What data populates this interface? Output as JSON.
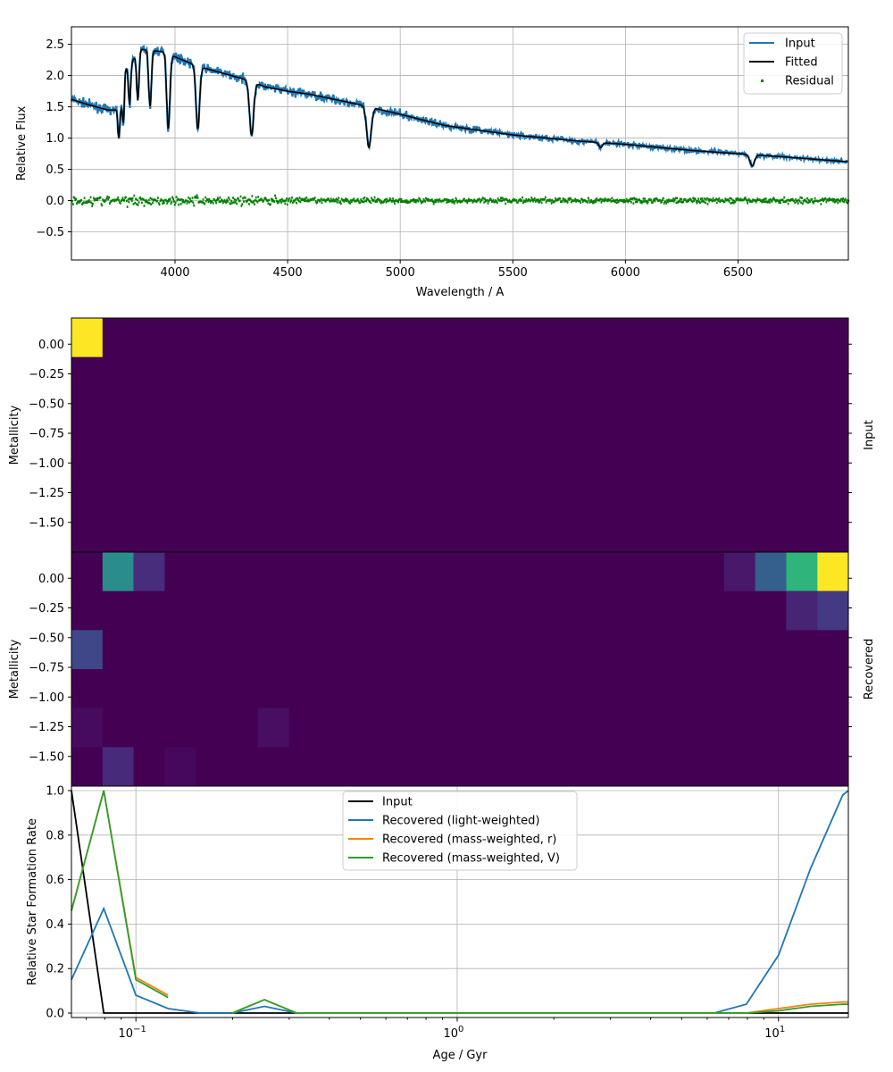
{
  "chart_data": [
    {
      "type": "line",
      "xlabel": "Wavelength / A",
      "ylabel": "Relative Flux",
      "xlim": [
        3540,
        6990
      ],
      "ylim": [
        -0.95,
        2.78
      ],
      "xticks": [
        4000,
        4500,
        5000,
        5500,
        6000,
        6500
      ],
      "yticks": [
        -0.5,
        0.0,
        0.5,
        1.0,
        1.5,
        2.0,
        2.5
      ],
      "grid": true,
      "legend_position": "top-right",
      "colors": {
        "input": "#1f77b4",
        "fitted": "#000000",
        "residual": "#008000"
      },
      "continuum": {
        "x": [
          3540,
          3600,
          3700,
          3760,
          3780,
          3850,
          3950,
          4000,
          4100,
          4200,
          4300,
          4400,
          4500,
          4600,
          4800,
          5000,
          5200,
          5500,
          5800,
          6000,
          6300,
          6500,
          6700,
          6990
        ],
        "y": [
          1.62,
          1.55,
          1.45,
          1.45,
          2.1,
          2.42,
          2.38,
          2.3,
          2.15,
          2.05,
          1.95,
          1.82,
          1.75,
          1.7,
          1.55,
          1.38,
          1.2,
          1.05,
          0.95,
          0.9,
          0.8,
          0.75,
          0.7,
          0.62
        ]
      },
      "absorption_lines": [
        {
          "x": 3750,
          "depth": 0.45,
          "width": 4
        },
        {
          "x": 3771,
          "depth": 0.55,
          "width": 4
        },
        {
          "x": 3798,
          "depth": 0.65,
          "width": 5
        },
        {
          "x": 3835,
          "depth": 0.75,
          "width": 5
        },
        {
          "x": 3889,
          "depth": 0.9,
          "width": 6
        },
        {
          "x": 3970,
          "depth": 1.2,
          "width": 7
        },
        {
          "x": 4101,
          "depth": 1.0,
          "width": 8
        },
        {
          "x": 4340,
          "depth": 0.85,
          "width": 9
        },
        {
          "x": 4861,
          "depth": 0.65,
          "width": 10
        },
        {
          "x": 5890,
          "depth": 0.08,
          "width": 8
        },
        {
          "x": 6563,
          "depth": 0.18,
          "width": 10
        }
      ],
      "legend": [
        {
          "name": "Input",
          "style": "line",
          "color": "#1f77b4"
        },
        {
          "name": "Fitted",
          "style": "line",
          "color": "#000000"
        },
        {
          "name": "Residual",
          "style": "dot",
          "color": "#008000"
        }
      ]
    },
    {
      "type": "heatmap",
      "ylabel": "Metallicity",
      "side_label": "Input",
      "n_cols": 25,
      "yticks": [
        0.0,
        -0.25,
        -0.5,
        -0.75,
        -1.0,
        -1.25,
        -1.5
      ],
      "ylim": [
        -1.75,
        0.22
      ],
      "cell_rows": [
        0.0,
        -0.3,
        -0.6,
        -0.9,
        -1.2,
        -1.5
      ],
      "cells": [
        {
          "col": 0,
          "row": 0,
          "color": "#fde725"
        }
      ]
    },
    {
      "type": "heatmap",
      "ylabel": "Metallicity",
      "side_label": "Recovered",
      "n_cols": 25,
      "yticks": [
        0.0,
        -0.25,
        -0.5,
        -0.75,
        -1.0,
        -1.25,
        -1.5
      ],
      "ylim": [
        -1.75,
        0.22
      ],
      "cell_rows": [
        0.0,
        -0.3,
        -0.6,
        -0.9,
        -1.2,
        -1.5
      ],
      "cells": [
        {
          "col": 1,
          "row": 0,
          "color": "#2a8c8b"
        },
        {
          "col": 2,
          "row": 0,
          "color": "#472d7b"
        },
        {
          "col": 21,
          "row": 0,
          "color": "#48196b"
        },
        {
          "col": 22,
          "row": 0,
          "color": "#355f8d"
        },
        {
          "col": 23,
          "row": 0,
          "color": "#2fb47c"
        },
        {
          "col": 24,
          "row": 0,
          "color": "#fde725"
        },
        {
          "col": 23,
          "row": 1,
          "color": "#482475"
        },
        {
          "col": 24,
          "row": 1,
          "color": "#443a83"
        },
        {
          "col": 0,
          "row": 2,
          "color": "#3f4788"
        },
        {
          "col": 0,
          "row": 4,
          "color": "#460b5e"
        },
        {
          "col": 6,
          "row": 4,
          "color": "#470e61"
        },
        {
          "col": 1,
          "row": 5,
          "color": "#472a7a"
        },
        {
          "col": 3,
          "row": 5,
          "color": "#46085c"
        }
      ]
    },
    {
      "type": "line",
      "xscale": "log",
      "xlabel": "Age / Gyr",
      "ylabel": "Relative Star Formation Rate",
      "xlim": [
        0.063,
        16.5
      ],
      "ylim": [
        -0.02,
        1.02
      ],
      "yticks": [
        0.0,
        0.2,
        0.4,
        0.6,
        0.8,
        1.0
      ],
      "xticks": [
        {
          "value": 0.1,
          "base": "10",
          "exp": "−1"
        },
        {
          "value": 1,
          "base": "10",
          "exp": "0"
        },
        {
          "value": 10,
          "base": "10",
          "exp": "1"
        }
      ],
      "grid": true,
      "legend_position": "upper center",
      "x": [
        0.063,
        0.0794,
        0.1,
        0.1259,
        0.1585,
        0.1995,
        0.2512,
        0.3162,
        0.3981,
        0.5012,
        0.631,
        0.7943,
        1.0,
        1.2589,
        1.5849,
        1.9953,
        2.5119,
        3.1623,
        3.9811,
        5.0119,
        6.3096,
        7.9433,
        10.0,
        12.5893,
        15.8489,
        16.5
      ],
      "series": [
        {
          "name": "Input",
          "color": "#000000",
          "values": [
            1.0,
            0.0,
            0.0,
            0.0,
            0.0,
            0.0,
            0.0,
            0.0,
            0.0,
            0.0,
            0.0,
            0.0,
            0.0,
            0.0,
            0.0,
            0.0,
            0.0,
            0.0,
            0.0,
            0.0,
            0.0,
            0.0,
            0.0,
            0.0,
            0.0,
            0.0
          ]
        },
        {
          "name": "Recovered (light-weighted)",
          "color": "#1f77b4",
          "values": [
            0.15,
            0.47,
            0.08,
            0.02,
            0.0,
            0.0,
            0.03,
            0.0,
            0.0,
            0.0,
            0.0,
            0.0,
            0.0,
            0.0,
            0.0,
            0.0,
            0.0,
            0.0,
            0.0,
            0.0,
            0.0,
            0.04,
            0.26,
            0.65,
            0.98,
            1.0
          ]
        },
        {
          "name": "Recovered (mass-weighted, r)",
          "color": "#ff7f0e",
          "values": [
            0.46,
            1.0,
            0.16,
            0.08,
            null,
            0.0,
            0.06,
            0.0,
            0.0,
            0.0,
            0.0,
            0.0,
            0.0,
            0.0,
            0.0,
            0.0,
            0.0,
            0.0,
            0.0,
            0.0,
            0.0,
            0.0,
            0.02,
            0.04,
            0.05,
            0.05
          ]
        },
        {
          "name": "Recovered (mass-weighted, V)",
          "color": "#2ca02c",
          "values": [
            0.46,
            1.0,
            0.15,
            0.07,
            null,
            0.0,
            0.06,
            0.0,
            0.0,
            0.0,
            0.0,
            0.0,
            0.0,
            0.0,
            0.0,
            0.0,
            0.0,
            0.0,
            0.0,
            0.0,
            0.0,
            0.0,
            0.01,
            0.03,
            0.04,
            0.04
          ]
        }
      ]
    }
  ]
}
